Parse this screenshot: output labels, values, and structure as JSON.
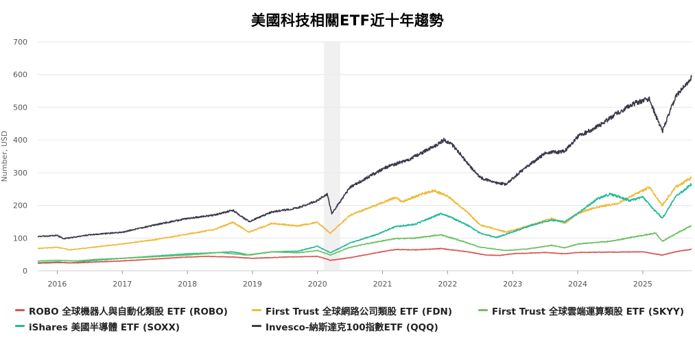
{
  "chart_data": {
    "type": "line",
    "title": "美國科技相關ETF近十年趨勢",
    "ylabel": "Number, USD",
    "xlabel": "",
    "ylim": [
      0,
      700
    ],
    "yticks": [
      0,
      100,
      200,
      300,
      400,
      500,
      600,
      700
    ],
    "xlim": [
      2015.7,
      2025.75
    ],
    "xticks": [
      "2016",
      "2017",
      "2018",
      "2019",
      "2020",
      "2021",
      "2022",
      "2023",
      "2024",
      "2025"
    ],
    "shaded_region": {
      "from": 2020.1,
      "to": 2020.35
    },
    "grid": "horizontal",
    "legend_position": "bottom",
    "series": [
      {
        "name": "ROBO 全球機器人與自動化類股 ETF (ROBO)",
        "color": "#d9534f",
        "points": [
          [
            2015.7,
            23
          ],
          [
            2016.0,
            25
          ],
          [
            2016.3,
            24
          ],
          [
            2016.6,
            27
          ],
          [
            2017.0,
            30
          ],
          [
            2017.5,
            36
          ],
          [
            2018.0,
            42
          ],
          [
            2018.3,
            44
          ],
          [
            2018.7,
            42
          ],
          [
            2019.0,
            38
          ],
          [
            2019.5,
            42
          ],
          [
            2020.0,
            44
          ],
          [
            2020.2,
            32
          ],
          [
            2020.5,
            40
          ],
          [
            2020.9,
            55
          ],
          [
            2021.2,
            65
          ],
          [
            2021.5,
            64
          ],
          [
            2021.9,
            68
          ],
          [
            2022.3,
            58
          ],
          [
            2022.6,
            48
          ],
          [
            2022.8,
            47
          ],
          [
            2023.0,
            52
          ],
          [
            2023.5,
            56
          ],
          [
            2023.8,
            52
          ],
          [
            2024.0,
            56
          ],
          [
            2024.5,
            57
          ],
          [
            2025.0,
            58
          ],
          [
            2025.3,
            48
          ],
          [
            2025.5,
            58
          ],
          [
            2025.75,
            66
          ]
        ]
      },
      {
        "name": "First Trust 全球網路公司類股 ETF (FDN)",
        "color": "#f0b93a",
        "points": [
          [
            2015.7,
            68
          ],
          [
            2016.0,
            72
          ],
          [
            2016.2,
            64
          ],
          [
            2016.6,
            73
          ],
          [
            2017.0,
            82
          ],
          [
            2017.5,
            95
          ],
          [
            2018.0,
            112
          ],
          [
            2018.4,
            125
          ],
          [
            2018.7,
            148
          ],
          [
            2018.95,
            118
          ],
          [
            2019.3,
            145
          ],
          [
            2019.7,
            137
          ],
          [
            2020.0,
            148
          ],
          [
            2020.2,
            115
          ],
          [
            2020.5,
            170
          ],
          [
            2020.9,
            200
          ],
          [
            2021.2,
            225
          ],
          [
            2021.3,
            210
          ],
          [
            2021.6,
            235
          ],
          [
            2021.8,
            245
          ],
          [
            2022.0,
            228
          ],
          [
            2022.3,
            180
          ],
          [
            2022.5,
            140
          ],
          [
            2022.7,
            130
          ],
          [
            2022.9,
            118
          ],
          [
            2023.2,
            135
          ],
          [
            2023.6,
            160
          ],
          [
            2023.8,
            145
          ],
          [
            2024.0,
            175
          ],
          [
            2024.3,
            195
          ],
          [
            2024.6,
            205
          ],
          [
            2024.9,
            235
          ],
          [
            2025.1,
            255
          ],
          [
            2025.3,
            200
          ],
          [
            2025.5,
            255
          ],
          [
            2025.75,
            285
          ]
        ]
      },
      {
        "name": "First Trust 全球雲端運算類股 ETF (SKYY)",
        "color": "#6cc062",
        "points": [
          [
            2015.7,
            30
          ],
          [
            2016.0,
            32
          ],
          [
            2016.3,
            30
          ],
          [
            2016.6,
            35
          ],
          [
            2017.0,
            38
          ],
          [
            2017.5,
            43
          ],
          [
            2018.0,
            48
          ],
          [
            2018.5,
            56
          ],
          [
            2018.9,
            48
          ],
          [
            2019.3,
            58
          ],
          [
            2019.7,
            55
          ],
          [
            2020.0,
            62
          ],
          [
            2020.2,
            48
          ],
          [
            2020.5,
            72
          ],
          [
            2020.9,
            88
          ],
          [
            2021.2,
            98
          ],
          [
            2021.5,
            100
          ],
          [
            2021.9,
            110
          ],
          [
            2022.2,
            92
          ],
          [
            2022.5,
            72
          ],
          [
            2022.9,
            62
          ],
          [
            2023.2,
            66
          ],
          [
            2023.6,
            78
          ],
          [
            2023.8,
            70
          ],
          [
            2024.0,
            82
          ],
          [
            2024.5,
            90
          ],
          [
            2024.9,
            105
          ],
          [
            2025.2,
            115
          ],
          [
            2025.3,
            90
          ],
          [
            2025.5,
            112
          ],
          [
            2025.75,
            138
          ]
        ]
      },
      {
        "name": "iShares 美國半導體 ETF (SOXX)",
        "color": "#26b99a",
        "points": [
          [
            2015.7,
            25
          ],
          [
            2016.0,
            27
          ],
          [
            2016.2,
            24
          ],
          [
            2016.6,
            32
          ],
          [
            2017.0,
            38
          ],
          [
            2017.5,
            45
          ],
          [
            2018.0,
            52
          ],
          [
            2018.4,
            55
          ],
          [
            2018.7,
            58
          ],
          [
            2018.95,
            48
          ],
          [
            2019.3,
            58
          ],
          [
            2019.7,
            60
          ],
          [
            2020.0,
            75
          ],
          [
            2020.2,
            55
          ],
          [
            2020.5,
            85
          ],
          [
            2020.9,
            110
          ],
          [
            2021.2,
            135
          ],
          [
            2021.5,
            142
          ],
          [
            2021.9,
            175
          ],
          [
            2022.0,
            168
          ],
          [
            2022.3,
            140
          ],
          [
            2022.5,
            115
          ],
          [
            2022.75,
            102
          ],
          [
            2022.95,
            115
          ],
          [
            2023.3,
            140
          ],
          [
            2023.6,
            155
          ],
          [
            2023.8,
            150
          ],
          [
            2024.0,
            175
          ],
          [
            2024.3,
            220
          ],
          [
            2024.5,
            235
          ],
          [
            2024.8,
            215
          ],
          [
            2025.0,
            225
          ],
          [
            2025.3,
            160
          ],
          [
            2025.5,
            225
          ],
          [
            2025.75,
            265
          ]
        ]
      },
      {
        "name": "Invesco-納斯達克100指數ETF (QQQ)",
        "color": "#3a3a4a",
        "points": [
          [
            2015.7,
            105
          ],
          [
            2016.0,
            108
          ],
          [
            2016.1,
            98
          ],
          [
            2016.5,
            110
          ],
          [
            2017.0,
            118
          ],
          [
            2017.5,
            140
          ],
          [
            2018.0,
            160
          ],
          [
            2018.4,
            170
          ],
          [
            2018.7,
            185
          ],
          [
            2018.95,
            150
          ],
          [
            2019.3,
            180
          ],
          [
            2019.7,
            192
          ],
          [
            2020.0,
            215
          ],
          [
            2020.15,
            235
          ],
          [
            2020.22,
            175
          ],
          [
            2020.5,
            255
          ],
          [
            2020.9,
            300
          ],
          [
            2021.1,
            320
          ],
          [
            2021.4,
            340
          ],
          [
            2021.7,
            370
          ],
          [
            2021.95,
            400
          ],
          [
            2022.1,
            380
          ],
          [
            2022.3,
            330
          ],
          [
            2022.5,
            285
          ],
          [
            2022.7,
            270
          ],
          [
            2022.9,
            265
          ],
          [
            2023.1,
            300
          ],
          [
            2023.5,
            360
          ],
          [
            2023.8,
            365
          ],
          [
            2024.0,
            410
          ],
          [
            2024.3,
            440
          ],
          [
            2024.6,
            480
          ],
          [
            2024.9,
            515
          ],
          [
            2025.1,
            525
          ],
          [
            2025.3,
            425
          ],
          [
            2025.5,
            530
          ],
          [
            2025.75,
            592
          ]
        ]
      }
    ]
  }
}
